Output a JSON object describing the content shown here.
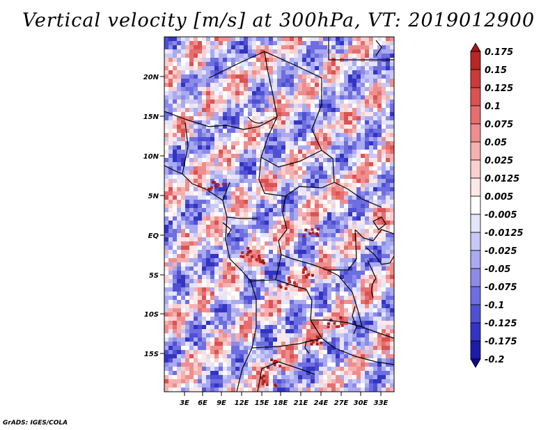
{
  "title": "Vertical velocity [m/s] at 300hPa, VT: 2019012900",
  "credit": "GrADS: IGES/COLA",
  "map": {
    "lat_ticks": [
      "20N",
      "15N",
      "10N",
      "5N",
      "EQ",
      "5S",
      "10S",
      "15S"
    ],
    "lon_ticks": [
      "3E",
      "6E",
      "9E",
      "12E",
      "15E",
      "18E",
      "21E",
      "24E",
      "27E",
      "30E",
      "33E"
    ],
    "field": "vertical velocity",
    "level": "300hPa"
  },
  "colorbar": {
    "labels": [
      "0.175",
      "0.15",
      "0.125",
      "0.1",
      "0.075",
      "0.05",
      "0.025",
      "0.0125",
      "0.005",
      "-0.005",
      "-0.0125",
      "-0.025",
      "-0.05",
      "-0.075",
      "-0.1",
      "-0.125",
      "-0.175",
      "-0.2"
    ],
    "colors": [
      "#a01818",
      "#b82626",
      "#cc3a3a",
      "#dc5252",
      "#e66e6e",
      "#ee8e8e",
      "#f5b0b0",
      "#f9d0d0",
      "#fde8e8",
      "#ffffff",
      "#e4e4fb",
      "#c8c8f6",
      "#aaaaf0",
      "#8c8ce8",
      "#6e6ee0",
      "#5050d4",
      "#3434c2",
      "#1c1ca8",
      "#0c0c8c"
    ]
  }
}
